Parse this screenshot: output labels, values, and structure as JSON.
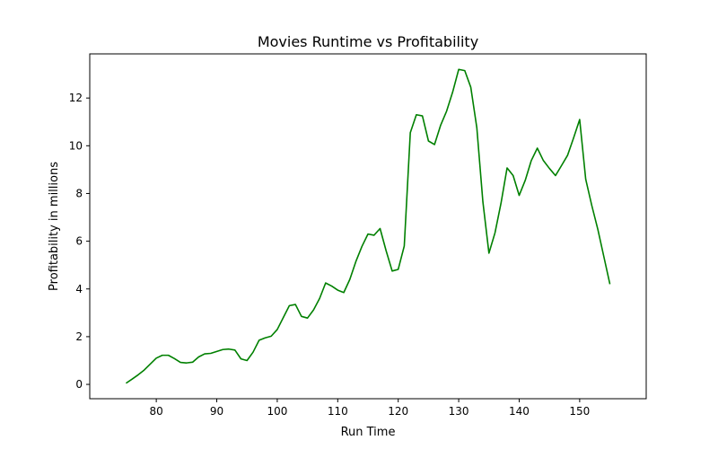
{
  "chart_data": {
    "type": "line",
    "title": "Movies Runtime vs Profitability",
    "xlabel": "Run Time",
    "ylabel": "Profitability in millions",
    "xlim": [
      69,
      161
    ],
    "ylim": [
      -0.6,
      13.85
    ],
    "xticks": [
      80,
      90,
      100,
      110,
      120,
      130,
      140,
      150
    ],
    "yticks": [
      0,
      2,
      4,
      6,
      8,
      10,
      12
    ],
    "grid": false,
    "legend": "none",
    "series": [
      {
        "color": "#008000",
        "x": [
          75,
          76,
          77,
          78,
          79,
          80,
          81,
          82,
          83,
          84,
          85,
          86,
          87,
          88,
          89,
          90,
          91,
          92,
          93,
          94,
          95,
          96,
          97,
          98,
          99,
          100,
          101,
          102,
          103,
          104,
          105,
          106,
          107,
          108,
          109,
          110,
          111,
          112,
          113,
          114,
          115,
          116,
          117,
          118,
          119,
          120,
          121,
          122,
          123,
          124,
          125,
          126,
          127,
          128,
          129,
          130,
          131,
          132,
          133,
          134,
          135,
          136,
          137,
          138,
          139,
          140,
          141,
          142,
          143,
          144,
          145,
          146,
          147,
          148,
          149,
          150,
          151,
          152,
          153,
          154,
          155
        ],
        "y": [
          0.05,
          0.22,
          0.4,
          0.6,
          0.85,
          1.1,
          1.22,
          1.22,
          1.08,
          0.92,
          0.9,
          0.93,
          1.15,
          1.28,
          1.3,
          1.38,
          1.46,
          1.48,
          1.44,
          1.07,
          1.0,
          1.35,
          1.85,
          1.95,
          2.02,
          2.3,
          2.8,
          3.3,
          3.35,
          2.85,
          2.78,
          3.12,
          3.6,
          4.25,
          4.12,
          3.95,
          3.85,
          4.4,
          5.15,
          5.78,
          6.3,
          6.25,
          6.53,
          5.6,
          4.75,
          4.82,
          5.8,
          10.55,
          11.3,
          11.25,
          10.2,
          10.05,
          10.85,
          11.45,
          12.25,
          13.2,
          13.15,
          12.45,
          10.75,
          7.65,
          5.5,
          6.35,
          7.6,
          9.07,
          8.75,
          7.92,
          8.55,
          9.38,
          9.9,
          9.38,
          9.05,
          8.75,
          9.17,
          9.6,
          10.33,
          11.1,
          8.6,
          7.5,
          6.5,
          5.35,
          4.2
        ]
      }
    ]
  }
}
